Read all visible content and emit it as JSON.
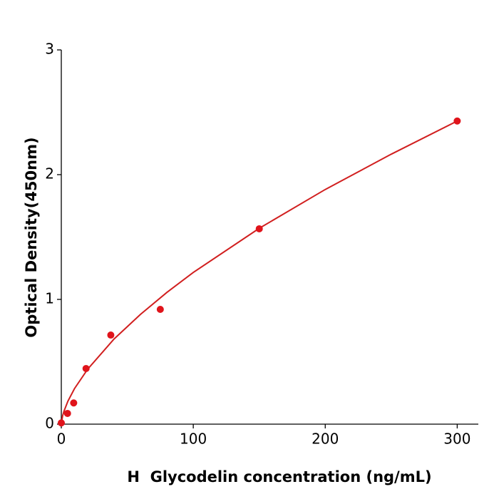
{
  "chart_data": {
    "type": "scatter",
    "x_label": "H  Glycodelin concentration (ng/mL)",
    "y_label": "Optical Density(450nm)",
    "xlim": [
      0,
      316
    ],
    "ylim": [
      0,
      3
    ],
    "xticks": [
      0,
      100,
      200,
      300
    ],
    "yticks": [
      0,
      1,
      2,
      3
    ],
    "points": {
      "color": "#e0141b",
      "x": [
        0,
        4.69,
        9.38,
        18.75,
        37.5,
        75,
        150,
        300
      ],
      "values": [
        0.01,
        0.086,
        0.17,
        0.446,
        0.714,
        0.92,
        1.566,
        2.43
      ]
    },
    "curve": {
      "color": "#d11f1f",
      "x": [
        0,
        1,
        2,
        5,
        10,
        20,
        40,
        60,
        80,
        100,
        150,
        200,
        250,
        300
      ],
      "values": [
        0,
        0.067,
        0.103,
        0.184,
        0.285,
        0.441,
        0.683,
        0.88,
        1.056,
        1.216,
        1.57,
        1.881,
        2.164,
        2.43
      ]
    }
  }
}
